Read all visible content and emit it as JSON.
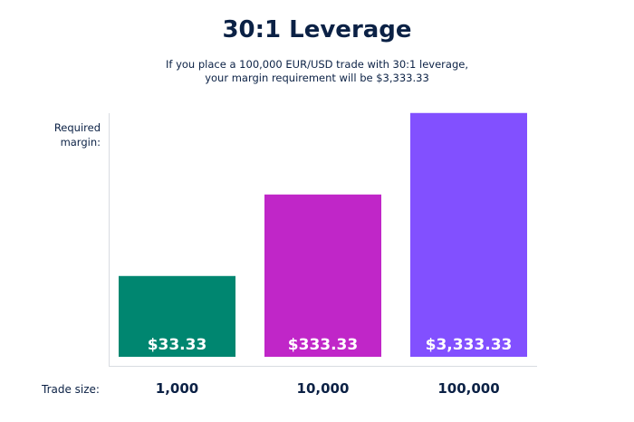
{
  "chart_data": {
    "type": "bar",
    "title": "30:1 Leverage",
    "subtitle": [
      "If you place a 100,000 EUR/USD trade with 30:1 leverage,",
      "your margin requirement will be $3,333.33"
    ],
    "ylabel": "Required margin:",
    "xlabel": "Trade size:",
    "y_scale": "log",
    "grid": false,
    "categories": [
      "1,000",
      "10,000",
      "100,000"
    ],
    "values": [
      33.33,
      333.33,
      3333.33
    ],
    "data_labels": [
      "$33.33",
      "$333.33",
      "$3,333.33"
    ],
    "colors": [
      "#008670",
      "#c026c8",
      "#8250ff"
    ],
    "text_color": "#0b2145"
  }
}
